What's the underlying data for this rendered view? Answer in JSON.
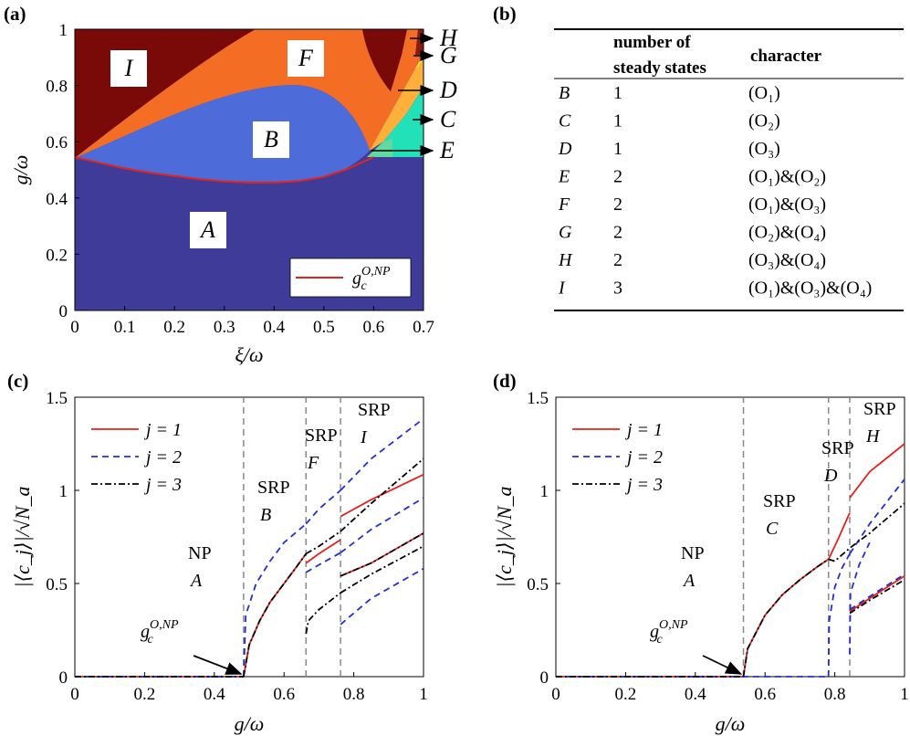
{
  "panels": {
    "a": "(a)",
    "b": "(b)",
    "c": "(c)",
    "d": "(d)"
  },
  "colors": {
    "A": "#3f3c99",
    "B": "#4d6bd9",
    "C": "#22e0b8",
    "D": "#ffb03b",
    "E": "#63d9a0",
    "F": "#f36e24",
    "G": "#f4ec3c",
    "H": "#8b1a10",
    "I": "#7a0a07",
    "critical_line": "#e0251f",
    "series1": "#e8201c",
    "series2": "#1f2fd6",
    "series3": "#000000",
    "vline": "#888888"
  },
  "chart_data": [
    {
      "id": "a",
      "type": "heatmap",
      "title": "",
      "xlabel": "ξ/ω",
      "ylabel": "g/ω",
      "xlim": [
        0,
        0.7
      ],
      "ylim": [
        0,
        1
      ],
      "xticks": [
        "0",
        "0.1",
        "0.2",
        "0.3",
        "0.4",
        "0.5",
        "0.6",
        "0.7"
      ],
      "yticks": [
        "0",
        "0.2",
        "0.4",
        "0.6",
        "0.8",
        "1"
      ],
      "region_labels": [
        "A",
        "B",
        "F",
        "I"
      ],
      "arrow_labels": [
        "H",
        "G",
        "D",
        "C",
        "E"
      ],
      "legend": {
        "label": "g",
        "sup": "O,NP",
        "sub": "c",
        "position": "bottom-right"
      },
      "critical_line": {
        "xi": [
          0,
          0.05,
          0.1,
          0.15,
          0.2,
          0.25,
          0.3,
          0.35,
          0.4,
          0.45,
          0.5,
          0.55,
          0.58,
          0.6
        ],
        "g": [
          0.545,
          0.525,
          0.505,
          0.49,
          0.478,
          0.467,
          0.459,
          0.455,
          0.455,
          0.46,
          0.475,
          0.505,
          0.53,
          0.545
        ]
      }
    },
    {
      "id": "c",
      "type": "line",
      "xlabel": "g/ω",
      "ylabel": "|⟨c_j⟩|/√N_a",
      "xlim": [
        0,
        1
      ],
      "ylim": [
        0,
        1.5
      ],
      "xticks": [
        "0",
        "0.2",
        "0.4",
        "0.6",
        "0.8",
        "1"
      ],
      "yticks": [
        "0",
        "0.5",
        "1",
        "1.5"
      ],
      "legend": [
        "j = 1",
        "j = 2",
        "j = 3"
      ],
      "critical_x": 0.484,
      "transitions": [
        0.484,
        0.663,
        0.762
      ],
      "phase_labels": [
        {
          "line1": "NP",
          "line2": "A"
        },
        {
          "line1": "SRP",
          "line2": "B"
        },
        {
          "line1": "SRP",
          "line2": "F"
        },
        {
          "line1": "SRP",
          "line2": "I"
        }
      ],
      "annotation": {
        "label": "g",
        "sup": "O,NP",
        "sub": "c"
      },
      "series": [
        {
          "name": "j = 1",
          "segments": [
            {
              "x": [
                0,
                0.484
              ],
              "y": [
                0,
                0
              ]
            },
            {
              "x": [
                0.484,
                0.5,
                0.53,
                0.56,
                0.6,
                0.63,
                0.663
              ],
              "y": [
                0,
                0.17,
                0.3,
                0.4,
                0.5,
                0.575,
                0.66
              ]
            },
            {
              "x": [
                0.663,
                0.7,
                0.762
              ],
              "y": [
                0.61,
                0.66,
                0.735
              ]
            },
            {
              "x": [
                0.762,
                0.85,
                1.0
              ],
              "y": [
                0.86,
                0.95,
                1.085
              ]
            },
            {
              "x": [
                0.762,
                0.85,
                1.0
              ],
              "y": [
                0.54,
                0.61,
                0.77
              ]
            }
          ]
        },
        {
          "name": "j = 2",
          "segments": [
            {
              "x": [
                0,
                0.484
              ],
              "y": [
                0,
                0
              ]
            },
            {
              "x": [
                0.484,
                0.49,
                0.52,
                0.56,
                0.6,
                0.663
              ],
              "y": [
                0,
                0.33,
                0.5,
                0.62,
                0.72,
                0.82
              ]
            },
            {
              "x": [
                0.663,
                0.7,
                0.762
              ],
              "y": [
                0.82,
                0.9,
                1.0
              ]
            },
            {
              "x": [
                0.762,
                0.85,
                1.0
              ],
              "y": [
                1.0,
                1.17,
                1.385
              ]
            },
            {
              "x": [
                0.663,
                0.7,
                0.762
              ],
              "y": [
                0.56,
                0.6,
                0.665
              ]
            },
            {
              "x": [
                0.762,
                0.85,
                1.0
              ],
              "y": [
                0.665,
                0.79,
                0.96
              ]
            },
            {
              "x": [
                0.762,
                0.85,
                1.0
              ],
              "y": [
                0.28,
                0.42,
                0.58
              ]
            }
          ]
        },
        {
          "name": "j = 3",
          "segments": [
            {
              "x": [
                0,
                0.484
              ],
              "y": [
                0,
                0
              ]
            },
            {
              "x": [
                0.484,
                0.5,
                0.53,
                0.56,
                0.6,
                0.63,
                0.663
              ],
              "y": [
                0,
                0.17,
                0.3,
                0.4,
                0.5,
                0.575,
                0.66
              ]
            },
            {
              "x": [
                0.663,
                0.7,
                0.762
              ],
              "y": [
                0.66,
                0.7,
                0.78
              ]
            },
            {
              "x": [
                0.762,
                0.85,
                1.0
              ],
              "y": [
                0.78,
                0.93,
                1.17
              ]
            },
            {
              "x": [
                0.663,
                0.67,
                0.7,
                0.762
              ],
              "y": [
                0.23,
                0.3,
                0.36,
                0.45
              ]
            },
            {
              "x": [
                0.762,
                0.85,
                1.0
              ],
              "y": [
                0.45,
                0.55,
                0.7
              ]
            },
            {
              "x": [
                0.762,
                0.85,
                1.0
              ],
              "y": [
                0.54,
                0.61,
                0.77
              ]
            }
          ]
        }
      ]
    },
    {
      "id": "d",
      "type": "line",
      "xlabel": "g/ω",
      "ylabel": "|⟨c_j⟩|/√N_a",
      "xlim": [
        0,
        1
      ],
      "ylim": [
        0,
        1.5
      ],
      "xticks": [
        "0",
        "0.2",
        "0.4",
        "0.6",
        "0.8",
        "1"
      ],
      "yticks": [
        "0",
        "0.5",
        "1",
        "1.5"
      ],
      "legend": [
        "j = 1",
        "j = 2",
        "j = 3"
      ],
      "critical_x": 0.538,
      "transitions": [
        0.538,
        0.782,
        0.843
      ],
      "phase_labels": [
        {
          "line1": "NP",
          "line2": "A"
        },
        {
          "line1": "SRP",
          "line2": "C"
        },
        {
          "line1": "SRP",
          "line2": "D"
        },
        {
          "line1": "SRP",
          "line2": "H"
        }
      ],
      "annotation": {
        "label": "g",
        "sup": "O,NP",
        "sub": "c"
      },
      "series": [
        {
          "name": "j = 1",
          "segments": [
            {
              "x": [
                0,
                0.538
              ],
              "y": [
                0,
                0
              ]
            },
            {
              "x": [
                0.538,
                0.55,
                0.6,
                0.65,
                0.7,
                0.75,
                0.782
              ],
              "y": [
                0,
                0.15,
                0.33,
                0.44,
                0.52,
                0.59,
                0.63
              ]
            },
            {
              "x": [
                0.782,
                0.81,
                0.843
              ],
              "y": [
                0.63,
                0.74,
                0.88
              ]
            },
            {
              "x": [
                0.843,
                0.9,
                1.0
              ],
              "y": [
                0.96,
                1.1,
                1.25
              ]
            },
            {
              "x": [
                0.843,
                0.9,
                1.0
              ],
              "y": [
                0.35,
                0.42,
                0.54
              ]
            }
          ]
        },
        {
          "name": "j = 2",
          "segments": [
            {
              "x": [
                0,
                0.782
              ],
              "y": [
                0,
                0
              ]
            },
            {
              "x": [
                0.782,
                0.784,
                0.8,
                0.82,
                0.843
              ],
              "y": [
                0,
                0.3,
                0.48,
                0.58,
                0.66
              ]
            },
            {
              "x": [
                0.843,
                0.9,
                1.0
              ],
              "y": [
                0.66,
                0.82,
                1.06
              ]
            },
            {
              "x": [
                0.843,
                0.845,
                0.87,
                0.9
              ],
              "y": [
                0.12,
                0.45,
                0.6,
                0.72
              ]
            },
            {
              "x": [
                0.843,
                0.9,
                1.0
              ],
              "y": [
                0.36,
                0.43,
                0.55
              ]
            }
          ]
        },
        {
          "name": "j = 3",
          "segments": [
            {
              "x": [
                0,
                0.538
              ],
              "y": [
                0,
                0
              ]
            },
            {
              "x": [
                0.538,
                0.55,
                0.6,
                0.65,
                0.7,
                0.75,
                0.782
              ],
              "y": [
                0,
                0.15,
                0.33,
                0.44,
                0.52,
                0.59,
                0.63
              ]
            },
            {
              "x": [
                0.782,
                0.8,
                0.843,
                0.9,
                1.0
              ],
              "y": [
                0.63,
                0.62,
                0.69,
                0.77,
                0.93
              ]
            },
            {
              "x": [
                0.843,
                0.9,
                1.0
              ],
              "y": [
                0.34,
                0.41,
                0.52
              ]
            }
          ]
        }
      ]
    }
  ],
  "table": {
    "header": {
      "col2_line1": "number of",
      "col2_line2": "steady states",
      "col3": "character"
    },
    "rows": [
      {
        "label": "B",
        "count": "1",
        "character": "(O₁)"
      },
      {
        "label": "C",
        "count": "1",
        "character": "(O₂)"
      },
      {
        "label": "D",
        "count": "1",
        "character": "(O₃)"
      },
      {
        "label": "E",
        "count": "2",
        "character": "(O₁)&(O₂)"
      },
      {
        "label": "F",
        "count": "2",
        "character": "(O₁)&(O₃)"
      },
      {
        "label": "G",
        "count": "2",
        "character": "(O₂)&(O₄)"
      },
      {
        "label": "H",
        "count": "2",
        "character": "(O₃)&(O₄)"
      },
      {
        "label": "I",
        "count": "3",
        "character": "(O₁)&(O₃)&(O₄)"
      }
    ]
  }
}
